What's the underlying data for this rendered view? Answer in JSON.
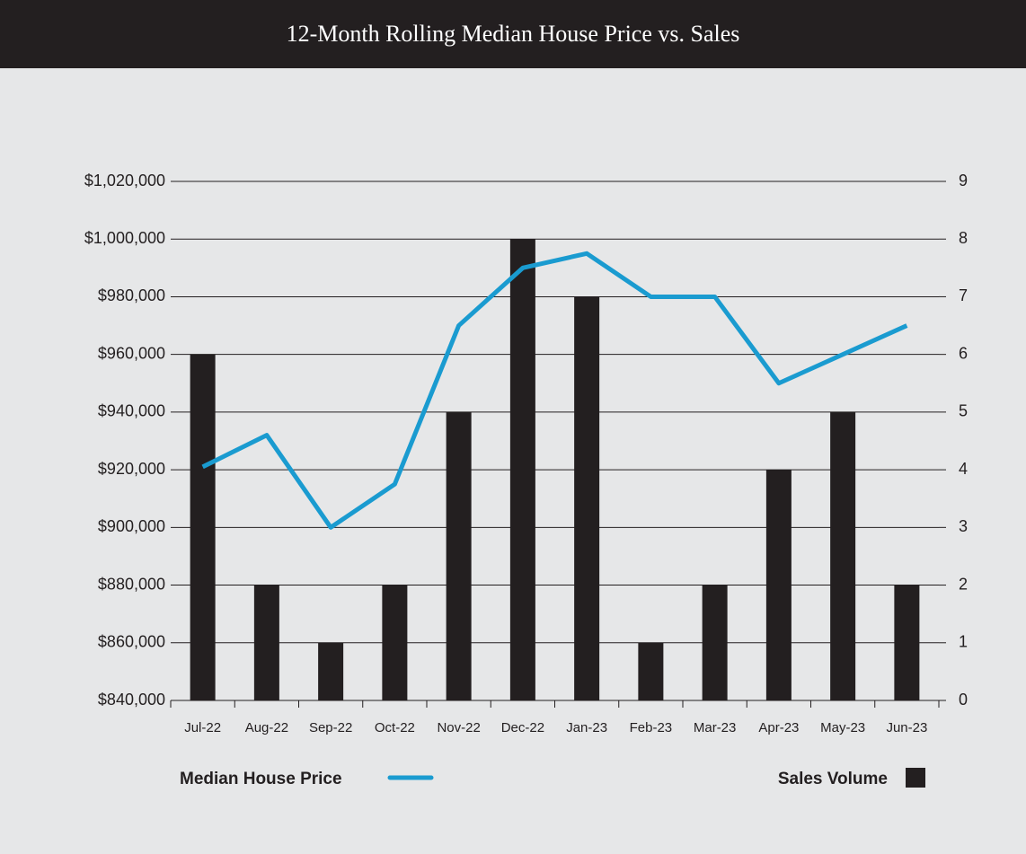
{
  "chart_data": {
    "type": "bar-line",
    "title": "12-Month Rolling Median House Price vs. Sales",
    "categories": [
      "Jul-22",
      "Aug-22",
      "Sep-22",
      "Oct-22",
      "Nov-22",
      "Dec-22",
      "Jan-23",
      "Feb-23",
      "Mar-23",
      "Apr-23",
      "May-23",
      "Jun-23"
    ],
    "series": [
      {
        "name": "Median House Price",
        "type": "line",
        "color": "#1a9bd0",
        "axis": "y",
        "values": [
          921000,
          932000,
          900000,
          915000,
          970000,
          990000,
          995000,
          980000,
          980000,
          950000,
          960000,
          970000
        ]
      },
      {
        "name": "Sales Volume",
        "type": "bar",
        "color": "#231f20",
        "axis": "y2",
        "values": [
          6,
          2,
          1,
          2,
          5,
          8,
          7,
          1,
          2,
          4,
          5,
          2
        ]
      }
    ],
    "ylim": [
      840000,
      1020000
    ],
    "yticks": [
      {
        "value": 840000,
        "label": "$840,000"
      },
      {
        "value": 860000,
        "label": "$860,000"
      },
      {
        "value": 880000,
        "label": "$880,000"
      },
      {
        "value": 900000,
        "label": "$900,000"
      },
      {
        "value": 920000,
        "label": "$920,000"
      },
      {
        "value": 940000,
        "label": "$940,000"
      },
      {
        "value": 960000,
        "label": "$960,000"
      },
      {
        "value": 980000,
        "label": "$980,000"
      },
      {
        "value": 1000000,
        "label": "$1,000,000"
      },
      {
        "value": 1020000,
        "label": "$1,020,000"
      }
    ],
    "y2lim": [
      0,
      9
    ],
    "y2ticks": [
      0,
      1,
      2,
      3,
      4,
      5,
      6,
      7,
      8,
      9
    ],
    "grid": true
  }
}
